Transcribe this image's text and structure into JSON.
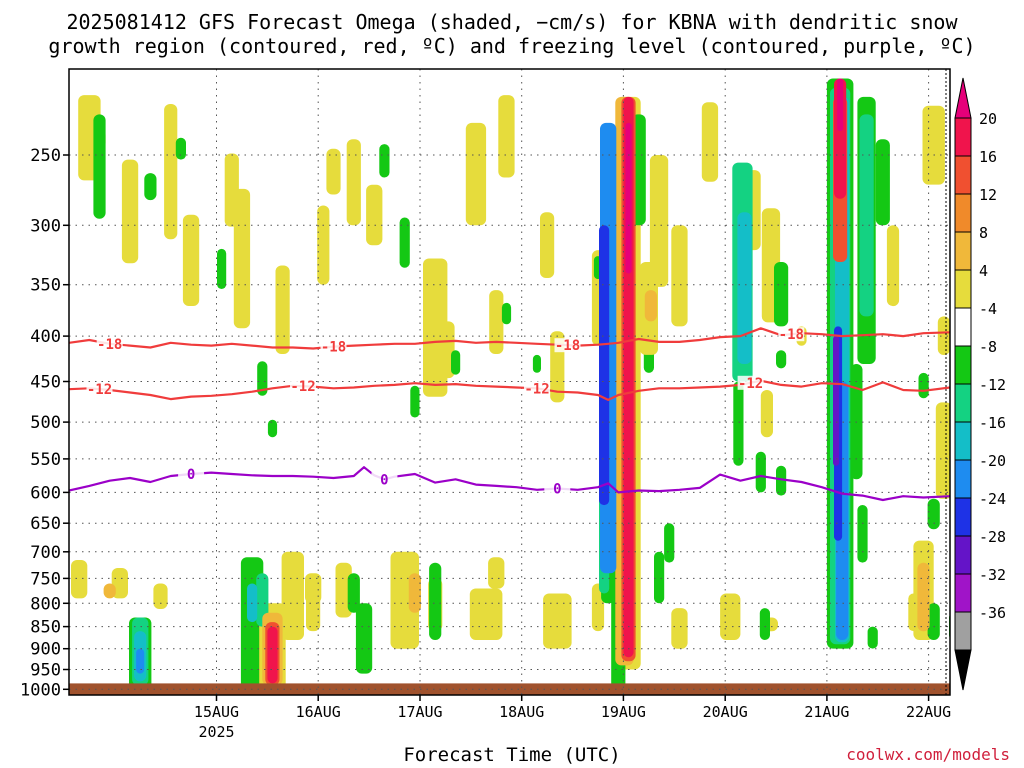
{
  "title_line1": "2025081412 GFS Forecast Omega (shaded, −cm/s) for KBNA with dendritic snow",
  "title_line2": "growth region (contoured, red, ºC) and freezing level (contoured, purple, ºC)",
  "xlabel": "Forecast Time (UTC)",
  "credit": "coolwx.com/models",
  "chart_data": {
    "type": "heatmap",
    "title": "2025081412 GFS Forecast Omega (shaded, −cm/s) for KBNA with dendritic snow growth region (contoured, red, ºC) and freezing level (contoured, purple, ºC)",
    "xlabel": "Forecast Time (UTC)",
    "ylabel": "",
    "x_ticks": [
      {
        "t": 14.5,
        "label": "15AUG",
        "sub": "2025"
      },
      {
        "t": 24.5,
        "label": "16AUG"
      },
      {
        "t": 34.5,
        "label": "17AUG"
      },
      {
        "t": 44.5,
        "label": "18AUG"
      },
      {
        "t": 54.5,
        "label": "19AUG"
      },
      {
        "t": 64.5,
        "label": "20AUG"
      },
      {
        "t": 74.5,
        "label": "21AUG"
      },
      {
        "t": 84.5,
        "label": "22AUG"
      }
    ],
    "x_range": [
      0,
      86.6
    ],
    "x_units_note": "hours after 2025-08-14 12 UTC divided by 2.4",
    "y_ticks": [
      250,
      300,
      350,
      400,
      450,
      500,
      550,
      600,
      650,
      700,
      750,
      800,
      850,
      900,
      950,
      1000
    ],
    "y_range": [
      200,
      1015
    ],
    "y_scale": "pressure (log-like), inverted",
    "grid": true,
    "ground": {
      "color": "#a0522d",
      "p_top": 985
    },
    "colorbar": {
      "labels": [
        20,
        16,
        12,
        8,
        4,
        -4,
        -8,
        -12,
        -16,
        -20,
        -24,
        -28,
        -32,
        -36
      ],
      "colors": [
        "#f0144c",
        "#f05030",
        "#f08a2a",
        "#f0b83a",
        "#e6dc3c",
        "#ffffff",
        "#14c814",
        "#14d282",
        "#14bec8",
        "#1e8cf0",
        "#1e32e6",
        "#6414c8",
        "#a014c8",
        "#a0a0a0"
      ],
      "top_color": "#e6007a",
      "bottom_color": "#000000"
    },
    "series": [
      {
        "name": "-18",
        "color": "#f03c3c",
        "label_positions": [
          4,
          26,
          49,
          71
        ],
        "t": [
          0,
          2,
          4,
          6,
          8,
          10,
          12,
          14,
          16,
          18,
          20,
          22,
          24,
          26,
          28,
          30,
          32,
          34,
          36,
          38,
          40,
          42,
          44,
          46,
          48,
          50,
          52,
          53,
          54,
          56,
          58,
          60,
          62,
          64,
          66,
          68,
          70,
          72,
          74,
          76,
          78,
          80,
          82,
          84,
          86.6
        ],
        "p": [
          407,
          404,
          408,
          410,
          412,
          407,
          409,
          410,
          408,
          410,
          412,
          412,
          413,
          411,
          410,
          409,
          408,
          408,
          406,
          405,
          407,
          406,
          407,
          408,
          409,
          410,
          409,
          408,
          407,
          403,
          406,
          406,
          404,
          401,
          400,
          392,
          399,
          397,
          398,
          400,
          399,
          398,
          400,
          397,
          396
        ]
      },
      {
        "name": "-12",
        "color": "#f03c3c",
        "label_positions": [
          3,
          23,
          46,
          67
        ],
        "t": [
          0,
          2,
          4,
          6,
          8,
          10,
          12,
          14,
          16,
          18,
          20,
          22,
          24,
          26,
          28,
          30,
          32,
          34,
          36,
          38,
          40,
          42,
          44,
          46,
          48,
          50,
          52,
          53,
          54,
          56,
          58,
          60,
          62,
          64,
          66,
          68,
          70,
          72,
          74,
          76,
          78,
          80,
          82,
          84,
          86.6
        ],
        "p": [
          459,
          458,
          460,
          463,
          466,
          471,
          468,
          467,
          465,
          462,
          458,
          455,
          456,
          458,
          457,
          455,
          454,
          452,
          454,
          453,
          455,
          456,
          457,
          458,
          462,
          463,
          466,
          472,
          466,
          461,
          458,
          458,
          457,
          456,
          454,
          449,
          454,
          456,
          452,
          453,
          460,
          451,
          460,
          461,
          457
        ]
      },
      {
        "name": "0",
        "color": "#9b00c8",
        "label_positions": [
          12,
          31,
          48
        ],
        "t": [
          0,
          2,
          4,
          6,
          8,
          10,
          12,
          14,
          16,
          18,
          20,
          22,
          24,
          26,
          28,
          29,
          30,
          31,
          32,
          34,
          36,
          38,
          40,
          42,
          44,
          46,
          48,
          50,
          52,
          53,
          54,
          56,
          58,
          60,
          62,
          64,
          66,
          68,
          70,
          72,
          74,
          76,
          78,
          80,
          82,
          84,
          86.6
        ],
        "p": [
          597,
          590,
          582,
          578,
          584,
          575,
          572,
          570,
          572,
          574,
          575,
          575,
          576,
          578,
          575,
          562,
          574,
          580,
          576,
          572,
          585,
          580,
          588,
          590,
          592,
          596,
          594,
          596,
          592,
          586,
          600,
          597,
          598,
          596,
          593,
          573,
          582,
          575,
          580,
          584,
          592,
          602,
          605,
          612,
          606,
          608,
          606
        ]
      }
    ]
  }
}
